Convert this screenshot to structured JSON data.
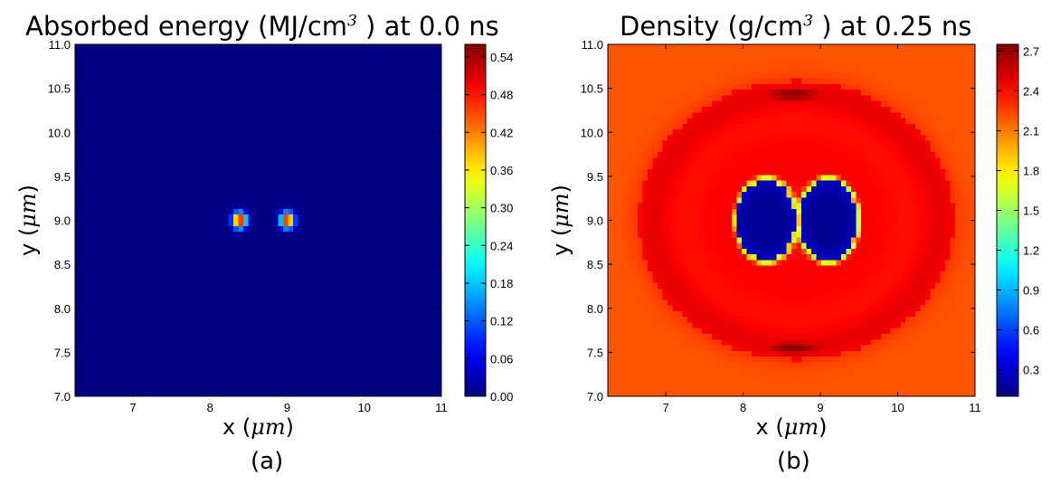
{
  "chart_data": [
    {
      "type": "heatmap",
      "title_prefix": "Absorbed energy (MJ/cm",
      "title_exp": "3",
      "title_suffix": " ) at 0.0 ns",
      "xlabel_prefix": "x (",
      "xlabel_unit": "μm",
      "xlabel_suffix": ")",
      "ylabel_prefix": "y (",
      "ylabel_unit": "μm",
      "ylabel_suffix": ")",
      "xlim": [
        6.25,
        11.0
      ],
      "ylim": [
        7.0,
        11.0
      ],
      "xticks": [
        "7",
        "8",
        "9",
        "10",
        "11"
      ],
      "yticks": [
        "7.0",
        "7.5",
        "8.0",
        "8.5",
        "9.0",
        "9.5",
        "10.0",
        "10.5",
        "11.0"
      ],
      "colorbar_range": [
        0.0,
        0.56
      ],
      "colorbar_ticks": [
        "0.00",
        "0.06",
        "0.12",
        "0.18",
        "0.24",
        "0.30",
        "0.36",
        "0.42",
        "0.48",
        "0.54"
      ],
      "background_value": 0.0,
      "features": [
        {
          "kind": "spot",
          "x": 8.38,
          "y": 9.0,
          "peak": 0.56,
          "sigma": 0.06
        },
        {
          "kind": "spot",
          "x": 9.0,
          "y": 9.0,
          "peak": 0.56,
          "sigma": 0.06
        }
      ],
      "caption": "(a)"
    },
    {
      "type": "heatmap",
      "title_prefix": "Density (g/cm",
      "title_exp": "3",
      "title_suffix": " ) at 0.25 ns",
      "xlabel_prefix": "x (",
      "xlabel_unit": "μm",
      "xlabel_suffix": ")",
      "ylabel_prefix": "y (",
      "ylabel_unit": "μm",
      "ylabel_suffix": ")",
      "xlim": [
        6.25,
        11.0
      ],
      "ylim": [
        7.0,
        11.0
      ],
      "xticks": [
        "7",
        "8",
        "9",
        "10",
        "11"
      ],
      "yticks": [
        "7.0",
        "7.5",
        "8.0",
        "8.5",
        "9.0",
        "9.5",
        "10.0",
        "10.5",
        "11.0"
      ],
      "colorbar_range": [
        0.1,
        2.75
      ],
      "colorbar_ticks": [
        "0.3",
        "0.6",
        "0.9",
        "1.2",
        "1.5",
        "1.8",
        "2.1",
        "2.4",
        "2.7"
      ],
      "background_value": 2.2,
      "features": [
        {
          "kind": "ring",
          "x": 8.69,
          "y": 9.0,
          "rx": 2.0,
          "ry": 1.55,
          "value": 2.45
        },
        {
          "kind": "arc",
          "x": 8.65,
          "y": 10.43,
          "rx": 0.55,
          "ry": 0.12,
          "value": 2.72
        },
        {
          "kind": "arc",
          "x": 8.65,
          "y": 7.55,
          "rx": 0.55,
          "ry": 0.12,
          "value": 2.72
        },
        {
          "kind": "cavity",
          "x": 8.3,
          "y": 9.0,
          "rx": 0.42,
          "ry": 0.5,
          "value": 0.15
        },
        {
          "kind": "cavity",
          "x": 9.1,
          "y": 9.0,
          "rx": 0.42,
          "ry": 0.5,
          "value": 0.15
        }
      ],
      "caption": "(b)"
    }
  ]
}
